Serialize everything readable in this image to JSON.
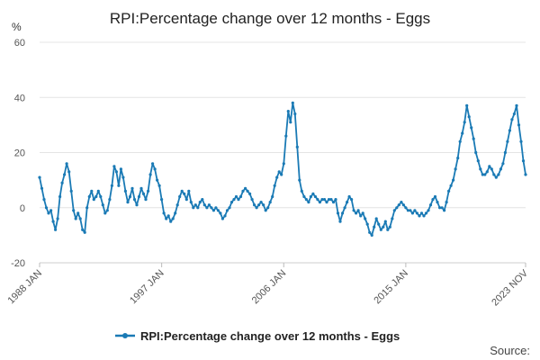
{
  "chart_data": {
    "type": "line",
    "title": "RPI:Percentage change over 12 months - Eggs",
    "ylabel": "%",
    "xlabel": "",
    "ylim": [
      -20,
      60
    ],
    "y_ticks": [
      -20,
      0,
      20,
      40,
      60
    ],
    "x_range": [
      "1988-01",
      "2023-11"
    ],
    "x_ticks": [
      {
        "label": "1988 JAN",
        "date": "1988-01"
      },
      {
        "label": "1997 JAN",
        "date": "1997-01"
      },
      {
        "label": "2006 JAN",
        "date": "2006-01"
      },
      {
        "label": "2015 JAN",
        "date": "2015-01"
      },
      {
        "label": "2023 NOV",
        "date": "2023-11"
      }
    ],
    "grid": true,
    "legend_position": "bottom",
    "source_label": "Source:",
    "series": [
      {
        "name": "RPI:Percentage change over 12 months - Eggs",
        "color": "#1a7ab5",
        "points": [
          [
            "1988-01",
            11
          ],
          [
            "1988-03",
            7
          ],
          [
            "1988-05",
            3
          ],
          [
            "1988-07",
            0
          ],
          [
            "1988-09",
            -2
          ],
          [
            "1988-11",
            -1
          ],
          [
            "1989-01",
            -5
          ],
          [
            "1989-03",
            -8
          ],
          [
            "1989-05",
            -4
          ],
          [
            "1989-07",
            4
          ],
          [
            "1989-09",
            9
          ],
          [
            "1989-11",
            12
          ],
          [
            "1990-01",
            16
          ],
          [
            "1990-03",
            13
          ],
          [
            "1990-05",
            6
          ],
          [
            "1990-07",
            -1
          ],
          [
            "1990-09",
            -4
          ],
          [
            "1990-11",
            -2
          ],
          [
            "1991-01",
            -4
          ],
          [
            "1991-03",
            -8
          ],
          [
            "1991-05",
            -9
          ],
          [
            "1991-07",
            0
          ],
          [
            "1991-09",
            4
          ],
          [
            "1991-11",
            6
          ],
          [
            "1992-01",
            3
          ],
          [
            "1992-03",
            4
          ],
          [
            "1992-05",
            6
          ],
          [
            "1992-07",
            4
          ],
          [
            "1992-09",
            1
          ],
          [
            "1992-11",
            -2
          ],
          [
            "1993-01",
            -1
          ],
          [
            "1993-03",
            3
          ],
          [
            "1993-05",
            8
          ],
          [
            "1993-07",
            15
          ],
          [
            "1993-09",
            13
          ],
          [
            "1993-11",
            8
          ],
          [
            "1994-01",
            14
          ],
          [
            "1994-03",
            11
          ],
          [
            "1994-05",
            6
          ],
          [
            "1994-07",
            2
          ],
          [
            "1994-09",
            4
          ],
          [
            "1994-11",
            7
          ],
          [
            "1995-01",
            3
          ],
          [
            "1995-03",
            1
          ],
          [
            "1995-05",
            4
          ],
          [
            "1995-07",
            7
          ],
          [
            "1995-09",
            5
          ],
          [
            "1995-11",
            3
          ],
          [
            "1996-01",
            6
          ],
          [
            "1996-03",
            12
          ],
          [
            "1996-05",
            16
          ],
          [
            "1996-07",
            14
          ],
          [
            "1996-09",
            10
          ],
          [
            "1996-11",
            8
          ],
          [
            "1997-01",
            3
          ],
          [
            "1997-03",
            -2
          ],
          [
            "1997-05",
            -4
          ],
          [
            "1997-07",
            -3
          ],
          [
            "1997-09",
            -5
          ],
          [
            "1997-11",
            -4
          ],
          [
            "1998-01",
            -2
          ],
          [
            "1998-03",
            1
          ],
          [
            "1998-05",
            4
          ],
          [
            "1998-07",
            6
          ],
          [
            "1998-09",
            5
          ],
          [
            "1998-11",
            3
          ],
          [
            "1999-01",
            6
          ],
          [
            "1999-03",
            2
          ],
          [
            "1999-05",
            0
          ],
          [
            "1999-07",
            1
          ],
          [
            "1999-09",
            0
          ],
          [
            "1999-11",
            2
          ],
          [
            "2000-01",
            3
          ],
          [
            "2000-03",
            1
          ],
          [
            "2000-05",
            0
          ],
          [
            "2000-07",
            1
          ],
          [
            "2000-09",
            0
          ],
          [
            "2000-11",
            -1
          ],
          [
            "2001-01",
            0
          ],
          [
            "2001-03",
            -1
          ],
          [
            "2001-05",
            -2
          ],
          [
            "2001-07",
            -4
          ],
          [
            "2001-09",
            -3
          ],
          [
            "2001-11",
            -1
          ],
          [
            "2002-01",
            0
          ],
          [
            "2002-03",
            2
          ],
          [
            "2002-05",
            3
          ],
          [
            "2002-07",
            4
          ],
          [
            "2002-09",
            3
          ],
          [
            "2002-11",
            4
          ],
          [
            "2003-01",
            6
          ],
          [
            "2003-03",
            7
          ],
          [
            "2003-05",
            6
          ],
          [
            "2003-07",
            5
          ],
          [
            "2003-09",
            3
          ],
          [
            "2003-11",
            1
          ],
          [
            "2004-01",
            0
          ],
          [
            "2004-03",
            1
          ],
          [
            "2004-05",
            2
          ],
          [
            "2004-07",
            1
          ],
          [
            "2004-09",
            -1
          ],
          [
            "2004-11",
            0
          ],
          [
            "2005-01",
            2
          ],
          [
            "2005-03",
            4
          ],
          [
            "2005-05",
            8
          ],
          [
            "2005-07",
            11
          ],
          [
            "2005-09",
            13
          ],
          [
            "2005-11",
            12
          ],
          [
            "2006-01",
            16
          ],
          [
            "2006-03",
            26
          ],
          [
            "2006-05",
            35
          ],
          [
            "2006-07",
            31
          ],
          [
            "2006-09",
            38
          ],
          [
            "2006-11",
            34
          ],
          [
            "2007-01",
            22
          ],
          [
            "2007-03",
            10
          ],
          [
            "2007-05",
            6
          ],
          [
            "2007-07",
            4
          ],
          [
            "2007-09",
            3
          ],
          [
            "2007-11",
            2
          ],
          [
            "2008-01",
            4
          ],
          [
            "2008-03",
            5
          ],
          [
            "2008-05",
            4
          ],
          [
            "2008-07",
            3
          ],
          [
            "2008-09",
            2
          ],
          [
            "2008-11",
            3
          ],
          [
            "2009-01",
            3
          ],
          [
            "2009-03",
            2
          ],
          [
            "2009-05",
            3
          ],
          [
            "2009-07",
            3
          ],
          [
            "2009-09",
            2
          ],
          [
            "2009-11",
            3
          ],
          [
            "2010-01",
            -2
          ],
          [
            "2010-03",
            -5
          ],
          [
            "2010-05",
            -2
          ],
          [
            "2010-07",
            0
          ],
          [
            "2010-09",
            2
          ],
          [
            "2010-11",
            4
          ],
          [
            "2011-01",
            3
          ],
          [
            "2011-03",
            -1
          ],
          [
            "2011-05",
            -2
          ],
          [
            "2011-07",
            -1
          ],
          [
            "2011-09",
            -3
          ],
          [
            "2011-11",
            -2
          ],
          [
            "2012-01",
            -4
          ],
          [
            "2012-03",
            -6
          ],
          [
            "2012-05",
            -9
          ],
          [
            "2012-07",
            -10
          ],
          [
            "2012-09",
            -7
          ],
          [
            "2012-11",
            -4
          ],
          [
            "2013-01",
            -6
          ],
          [
            "2013-03",
            -8
          ],
          [
            "2013-05",
            -7
          ],
          [
            "2013-07",
            -5
          ],
          [
            "2013-09",
            -8
          ],
          [
            "2013-11",
            -7
          ],
          [
            "2014-01",
            -4
          ],
          [
            "2014-03",
            -1
          ],
          [
            "2014-05",
            0
          ],
          [
            "2014-07",
            1
          ],
          [
            "2014-09",
            2
          ],
          [
            "2014-11",
            1
          ],
          [
            "2015-01",
            0
          ],
          [
            "2015-03",
            -1
          ],
          [
            "2015-05",
            -1
          ],
          [
            "2015-07",
            -2
          ],
          [
            "2015-09",
            -1
          ],
          [
            "2015-11",
            -2
          ],
          [
            "2016-01",
            -3
          ],
          [
            "2016-03",
            -2
          ],
          [
            "2016-05",
            -3
          ],
          [
            "2016-07",
            -2
          ],
          [
            "2016-09",
            -1
          ],
          [
            "2016-11",
            1
          ],
          [
            "2017-01",
            3
          ],
          [
            "2017-03",
            4
          ],
          [
            "2017-05",
            2
          ],
          [
            "2017-07",
            0
          ],
          [
            "2017-09",
            0
          ],
          [
            "2017-11",
            -1
          ],
          [
            "2018-01",
            2
          ],
          [
            "2018-03",
            6
          ],
          [
            "2018-05",
            8
          ],
          [
            "2018-07",
            10
          ],
          [
            "2018-09",
            14
          ],
          [
            "2018-11",
            18
          ],
          [
            "2019-01",
            24
          ],
          [
            "2019-03",
            27
          ],
          [
            "2019-05",
            31
          ],
          [
            "2019-07",
            37
          ],
          [
            "2019-09",
            33
          ],
          [
            "2019-11",
            29
          ],
          [
            "2020-01",
            25
          ],
          [
            "2020-03",
            20
          ],
          [
            "2020-05",
            17
          ],
          [
            "2020-07",
            14
          ],
          [
            "2020-09",
            12
          ],
          [
            "2020-11",
            12
          ],
          [
            "2021-01",
            13
          ],
          [
            "2021-03",
            15
          ],
          [
            "2021-05",
            14
          ],
          [
            "2021-07",
            12
          ],
          [
            "2021-09",
            11
          ],
          [
            "2021-11",
            12
          ],
          [
            "2022-01",
            14
          ],
          [
            "2022-03",
            16
          ],
          [
            "2022-05",
            20
          ],
          [
            "2022-07",
            24
          ],
          [
            "2022-09",
            28
          ],
          [
            "2022-11",
            32
          ],
          [
            "2023-01",
            34
          ],
          [
            "2023-03",
            37
          ],
          [
            "2023-05",
            30
          ],
          [
            "2023-07",
            24
          ],
          [
            "2023-09",
            17
          ],
          [
            "2023-11",
            12
          ]
        ]
      }
    ]
  }
}
